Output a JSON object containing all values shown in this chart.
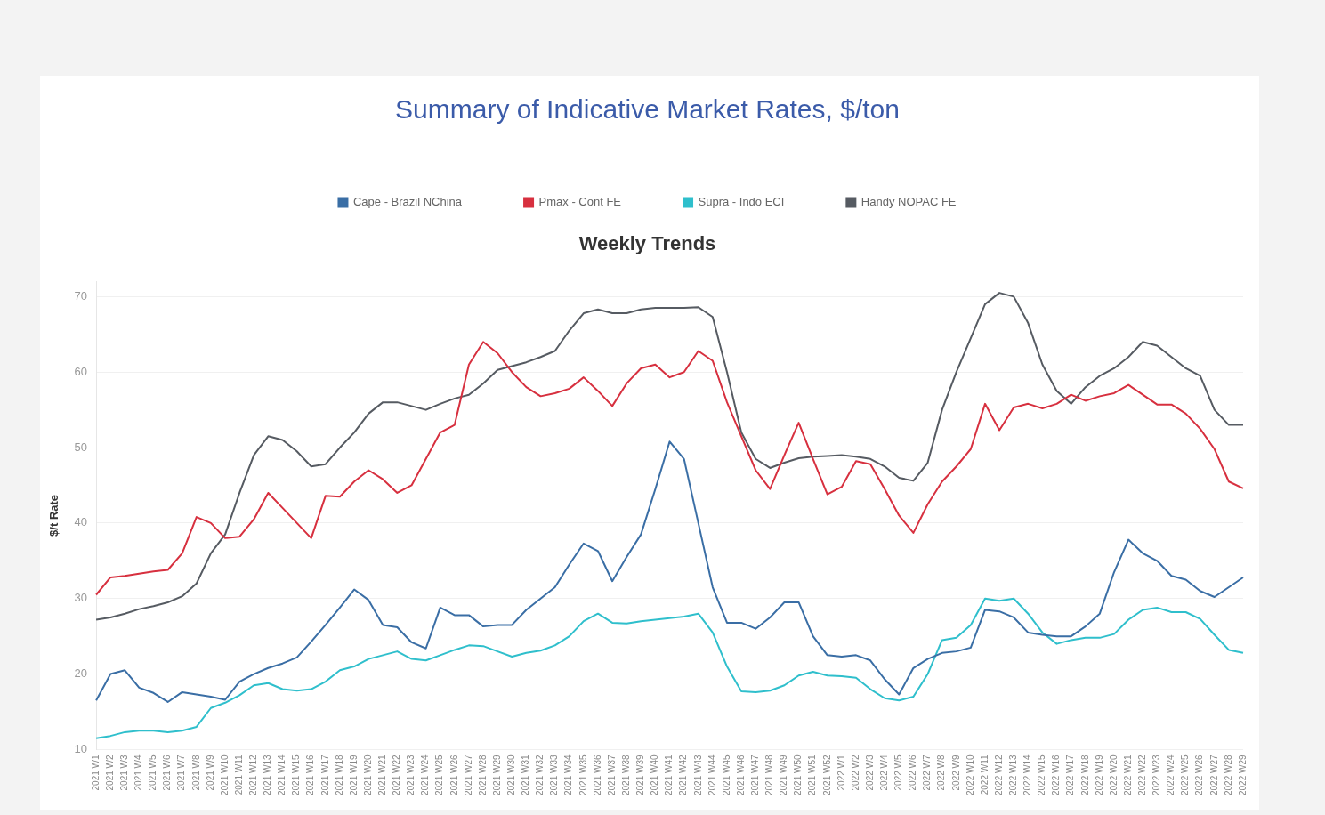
{
  "chart_data": {
    "type": "line",
    "title": "Summary of Indicative Market Rates, $/ton",
    "subtitle": "Weekly Trends",
    "ylabel": "$/t Rate",
    "categories": [
      "2021 W1",
      "2021 W2",
      "2021 W3",
      "2021 W4",
      "2021 W5",
      "2021 W6",
      "2021 W7",
      "2021 W8",
      "2021 W9",
      "2021 W10",
      "2021 W11",
      "2021 W12",
      "2021 W13",
      "2021 W14",
      "2021 W15",
      "2021 W16",
      "2021 W17",
      "2021 W18",
      "2021 W19",
      "2021 W20",
      "2021 W21",
      "2021 W22",
      "2021 W23",
      "2021 W24",
      "2021 W25",
      "2021 W26",
      "2021 W27",
      "2021 W28",
      "2021 W29",
      "2021 W30",
      "2021 W31",
      "2021 W32",
      "2021 W33",
      "2021 W34",
      "2021 W35",
      "2021 W36",
      "2021 W37",
      "2021 W38",
      "2021 W39",
      "2021 W40",
      "2021 W41",
      "2021 W42",
      "2021 W43",
      "2021 W44",
      "2021 W45",
      "2021 W46",
      "2021 W47",
      "2021 W48",
      "2021 W49",
      "2021 W50",
      "2021 W51",
      "2021 W52",
      "2022 W1",
      "2022 W2",
      "2022 W3",
      "2022 W4",
      "2022 W5",
      "2022 W6",
      "2022 W7",
      "2022 W8",
      "2022 W9",
      "2022 W10",
      "2022 W11",
      "2022 W12",
      "2022 W13",
      "2022 W14",
      "2022 W15",
      "2022 W16",
      "2022 W17",
      "2022 W18",
      "2022 W19",
      "2022 W20",
      "2022 W21",
      "2022 W22",
      "2022 W23",
      "2022 W24",
      "2022 W25",
      "2022 W26",
      "2022 W27",
      "2022 W28",
      "2022 W29"
    ],
    "series": [
      {
        "name": "Cape - Brazil NChina",
        "color": "#3a6ea5",
        "values": [
          16.5,
          20,
          20.5,
          18.2,
          17.5,
          16.3,
          17.6,
          17.3,
          17,
          16.6,
          19,
          20,
          20.8,
          21.4,
          22.2,
          24.3,
          26.5,
          28.8,
          31.2,
          29.8,
          26.5,
          26.2,
          24.2,
          23.4,
          28.8,
          27.8,
          27.8,
          26.3,
          26.5,
          26.5,
          28.5,
          30,
          31.5,
          34.5,
          37.3,
          36.3,
          32.3,
          35.5,
          38.5,
          44.5,
          50.8,
          48.5,
          40,
          31.5,
          26.8,
          26.8,
          26,
          27.5,
          29.5,
          29.5,
          25,
          22.5,
          22.3,
          22.5,
          21.8,
          19.3,
          17.3,
          20.8,
          22,
          22.8,
          23,
          23.5,
          28.5,
          28.3,
          27.5,
          25.5,
          25.2,
          25,
          25,
          26.3,
          28,
          33.5,
          37.8,
          36,
          35,
          33,
          32.5,
          31,
          30.2,
          31.5,
          32.8
        ]
      },
      {
        "name": "Pmax - Cont FE",
        "color": "#d7303f",
        "values": [
          30.5,
          32.8,
          33,
          33.3,
          33.6,
          33.8,
          36,
          40.8,
          40,
          38,
          38.2,
          40.5,
          44,
          42,
          40,
          38,
          43.6,
          43.5,
          45.5,
          47,
          45.8,
          44,
          45,
          48.5,
          52,
          53,
          61,
          64,
          62.5,
          60,
          58,
          56.8,
          57.2,
          57.8,
          59.3,
          57.5,
          55.5,
          58.5,
          60.5,
          61,
          59.3,
          60,
          62.8,
          61.5,
          56,
          51.5,
          47,
          44.5,
          49,
          53.3,
          48.5,
          43.8,
          44.8,
          48.2,
          47.8,
          44.5,
          41,
          38.7,
          42.5,
          45.5,
          47.5,
          49.8,
          55.8,
          52.3,
          55.3,
          55.8,
          55.2,
          55.8,
          57,
          56.2,
          56.8,
          57.2,
          58.3,
          57,
          55.7,
          55.7,
          54.5,
          52.5,
          49.8,
          45.5,
          44.6
        ]
      },
      {
        "name": "Supra - Indo ECI",
        "color": "#2fbfcc",
        "values": [
          11.5,
          11.8,
          12.3,
          12.5,
          12.5,
          12.3,
          12.5,
          13,
          15.5,
          16.2,
          17.2,
          18.5,
          18.8,
          18,
          17.8,
          18,
          19,
          20.5,
          21,
          22,
          22.5,
          23,
          22,
          21.8,
          22.5,
          23.2,
          23.8,
          23.7,
          23,
          22.3,
          22.8,
          23.1,
          23.8,
          25,
          27,
          28,
          26.8,
          26.7,
          27,
          27.2,
          27.4,
          27.6,
          28,
          25.5,
          21,
          17.7,
          17.6,
          17.8,
          18.5,
          19.8,
          20.3,
          19.8,
          19.7,
          19.5,
          18,
          16.8,
          16.5,
          17,
          20,
          24.5,
          24.8,
          26.5,
          30,
          29.7,
          30,
          28,
          25.5,
          24,
          24.5,
          24.8,
          24.8,
          25.3,
          27.2,
          28.5,
          28.8,
          28.2,
          28.2,
          27.3,
          25.2,
          23.2,
          22.8
        ]
      },
      {
        "name": "Handy NOPAC FE",
        "color": "#565b62",
        "values": [
          27.2,
          27.5,
          28,
          28.6,
          29,
          29.5,
          30.3,
          32,
          36,
          38.5,
          44,
          49,
          51.5,
          51,
          49.5,
          47.5,
          47.8,
          50,
          52,
          54.5,
          56,
          56,
          55.5,
          55,
          55.8,
          56.5,
          57,
          58.5,
          60.3,
          60.8,
          61.3,
          62,
          62.8,
          65.5,
          67.8,
          68.3,
          67.8,
          67.8,
          68.3,
          68.5,
          68.5,
          68.5,
          68.6,
          67.3,
          60,
          52,
          48.5,
          47.3,
          48,
          48.6,
          48.8,
          48.9,
          49,
          48.8,
          48.5,
          47.5,
          46,
          45.6,
          48,
          55,
          60,
          64.5,
          69,
          70.5,
          70,
          66.5,
          61,
          57.5,
          55.8,
          58,
          59.5,
          60.5,
          62,
          64,
          63.5,
          62,
          60.5,
          59.5,
          55,
          53,
          53
        ]
      }
    ],
    "ylim": [
      10,
      72
    ],
    "yticks": [
      10,
      20,
      30,
      40,
      50,
      60,
      70
    ],
    "grid": "y",
    "legend": "top",
    "marker": "none",
    "line_style": "solid"
  }
}
